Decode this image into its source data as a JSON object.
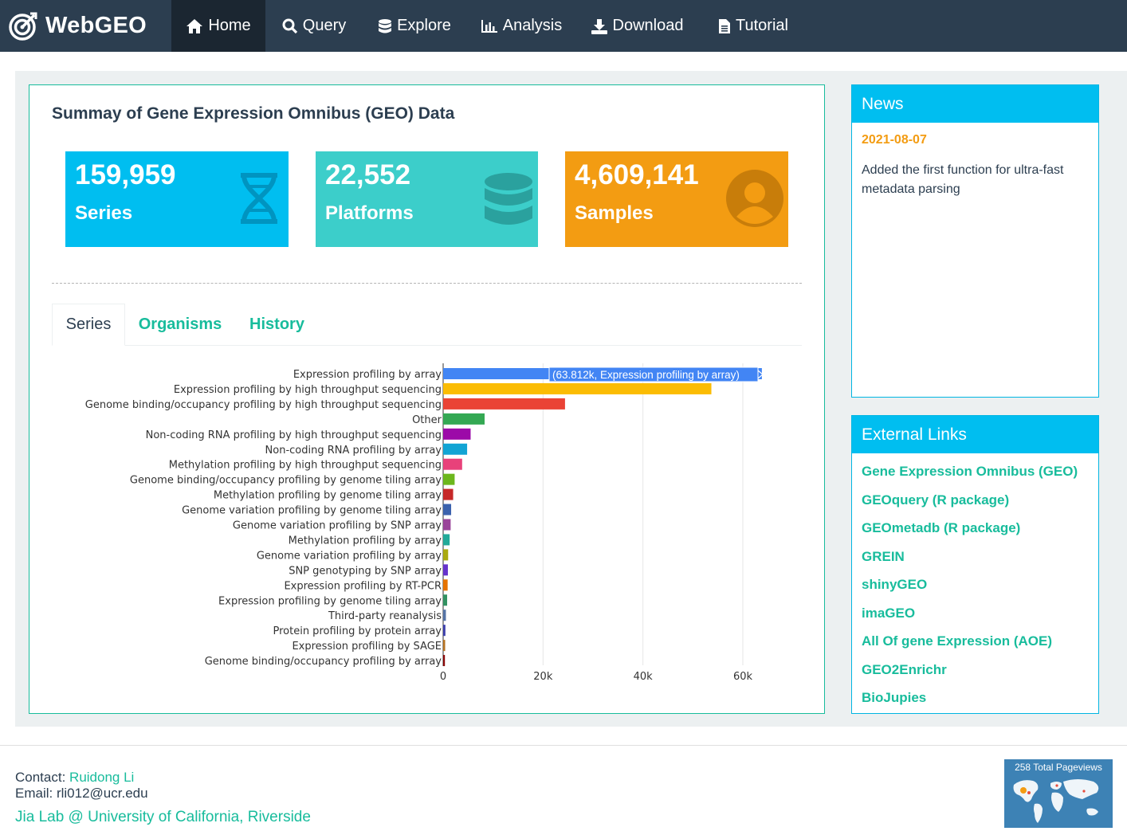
{
  "nav": {
    "brand": "WebGEO",
    "items": [
      {
        "label": "Home",
        "icon": "home-icon"
      },
      {
        "label": "Query",
        "icon": "search-icon"
      },
      {
        "label": "Explore",
        "icon": "database-icon"
      },
      {
        "label": "Analysis",
        "icon": "bar-chart-icon"
      },
      {
        "label": "Download",
        "icon": "download-icon"
      },
      {
        "label": "Tutorial",
        "icon": "file-icon"
      }
    ]
  },
  "summary": {
    "title": "Summay of Gene Expression Omnibus (GEO) Data",
    "stats": [
      {
        "value": "159,959",
        "label": "Series",
        "color": "#00bef0",
        "icon": "dna-icon"
      },
      {
        "value": "22,552",
        "label": "Platforms",
        "color": "#3cceca",
        "icon": "database-icon"
      },
      {
        "value": "4,609,141",
        "label": "Samples",
        "color": "#f39c12",
        "icon": "user-icon"
      }
    ]
  },
  "tabs": [
    "Series",
    "Organisms",
    "History"
  ],
  "chart_data": {
    "type": "bar",
    "orientation": "horizontal",
    "categories": [
      "Expression profiling by array",
      "Expression profiling by high throughput sequencing",
      "Genome binding/occupancy profiling by high throughput sequencing",
      "Other",
      "Non-coding RNA profiling by high throughput sequencing",
      "Non-coding RNA profiling by array",
      "Methylation profiling by high throughput sequencing",
      "Genome binding/occupancy profiling by genome tiling array",
      "Methylation profiling by genome tiling array",
      "Genome variation profiling by genome tiling array",
      "Genome variation profiling by SNP array",
      "Methylation profiling by array",
      "Genome variation profiling by array",
      "SNP genotyping by SNP array",
      "Expression profiling by RT-PCR",
      "Expression profiling by genome tiling array",
      "Third-party reanalysis",
      "Protein profiling by protein array",
      "Expression profiling by SAGE",
      "Genome binding/occupancy profiling by array"
    ],
    "values": [
      63812,
      53700,
      24400,
      8300,
      5500,
      4800,
      3800,
      2300,
      2000,
      1600,
      1500,
      1300,
      1000,
      950,
      900,
      800,
      550,
      450,
      400,
      350
    ],
    "colors": [
      "#4285f4",
      "#fbbc04",
      "#ea4335",
      "#34a853",
      "#9c0aa8",
      "#12a4d4",
      "#e8417a",
      "#6cb71d",
      "#c62828",
      "#3b62ad",
      "#994499",
      "#22aa99",
      "#aaaa11",
      "#6633cc",
      "#e67300",
      "#329262",
      "#5574a6",
      "#3b3eac",
      "#b77322",
      "#8b0707"
    ],
    "xlim": [
      0,
      70000
    ],
    "xticks": [
      "0",
      "20k",
      "40k",
      "60k"
    ],
    "xtick_values": [
      0,
      20000,
      40000,
      60000
    ],
    "tooltip": "(63.812k, Expression profiling by array)"
  },
  "news": {
    "title": "News",
    "date": "2021-08-07",
    "text": "Added the first function for ultra-fast metadata parsing"
  },
  "links": {
    "title": "External Links",
    "items": [
      "Gene Expression Omnibus (GEO)",
      "GEOquery (R package)",
      "GEOmetadb (R package)",
      "GREIN",
      "shinyGEO",
      "imaGEO",
      "All Of gene Expression (AOE)",
      "GEO2Enrichr",
      "BioJupies"
    ]
  },
  "footer": {
    "contact_label": "Contact:",
    "contact_name": "Ruidong Li",
    "email": "Email: rli012@ucr.edu",
    "lab": "Jia Lab @ University of California, Riverside",
    "pageviews": "258 Total Pageviews"
  }
}
